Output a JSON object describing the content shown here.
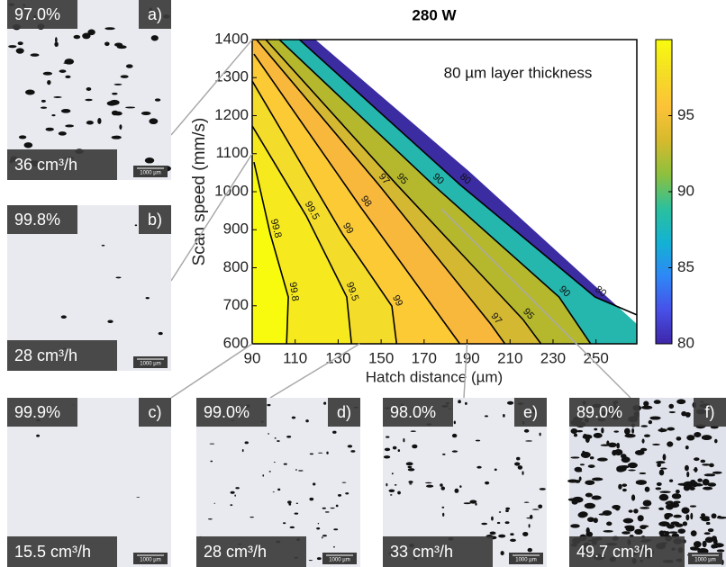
{
  "chart_data": {
    "type": "contour",
    "title": "280 W",
    "annotation": "80 µm layer thickness",
    "x_label": "Hatch distance (µm)",
    "y_label": "Scan speed (mm/s)",
    "xlim": [
      90,
      269
    ],
    "ylim": [
      600,
      1400
    ],
    "xticks": [
      90,
      110,
      130,
      150,
      170,
      190,
      210,
      230,
      250
    ],
    "yticks": [
      600,
      700,
      800,
      900,
      1000,
      1100,
      1200,
      1300,
      1400
    ],
    "clim": [
      80,
      100
    ],
    "cticks": [
      80,
      85,
      90,
      95
    ],
    "colormap": [
      "#3e26a8",
      "#4750e8",
      "#2e87f7",
      "#13b2d3",
      "#2bc09d",
      "#8cc03e",
      "#d6ba2d",
      "#fcc238",
      "#f5dd25",
      "#f9fb0e"
    ],
    "fill_above": "#f9fb0e",
    "contours": [
      {
        "level": 99.8,
        "color": "#f6ea1e",
        "x": [
          90.8,
          98.4,
          106.8,
          106
        ],
        "y": [
          1078,
          889,
          723,
          600
        ]
      },
      {
        "level": 99.5,
        "color": "#f4dc2a",
        "x": [
          90,
          115.2,
          134,
          136.2
        ],
        "y": [
          1173,
          936,
          723,
          600
        ]
      },
      {
        "level": 99,
        "color": "#fbca35",
        "x": [
          90,
          132,
          155,
          157.2
        ],
        "y": [
          1291,
          889,
          699,
          600
        ]
      },
      {
        "level": 98,
        "color": "#f8b83c",
        "x": [
          90.8,
          140.4,
          186.6
        ],
        "y": [
          1362,
          960,
          600
        ]
      },
      {
        "level": 97,
        "color": "#d4b832",
        "x": [
          92,
          148.8,
          201,
          207.6
        ],
        "y": [
          1400,
          1019,
          652,
          600
        ]
      },
      {
        "level": 95,
        "color": "#b5b82c",
        "x": [
          96.3,
          157.2,
          216,
          224.4
        ],
        "y": [
          1400,
          1019,
          664,
          600
        ]
      },
      {
        "level": 90,
        "color": "#25b6ad",
        "x": [
          102.6,
          174,
          232.8,
          247.5
        ],
        "y": [
          1400,
          1019,
          723,
          600
        ]
      },
      {
        "level": 80,
        "color": "#3b2ca2",
        "x": [
          112,
          186.6,
          249.6,
          269
        ],
        "y": [
          1400,
          1019,
          723,
          676
        ]
      }
    ],
    "domain_edge": {
      "color": "#ffffff",
      "x": [
        119.4,
        190.8,
        269
      ],
      "y": [
        1400,
        1054,
        652
      ]
    },
    "samples": [
      {
        "label": "a)",
        "density": "97.0%",
        "rate": "36 cm³/h",
        "scale": "1000 µm",
        "x": 90,
        "y": 1400
      },
      {
        "label": "b)",
        "density": "99.8%",
        "rate": "28 cm³/h",
        "scale": "1000 µm",
        "x": 90,
        "y": 1100
      },
      {
        "label": "c)",
        "density": "99.9%",
        "rate": "15.5 cm³/h",
        "scale": "1000 µm",
        "x": 90,
        "y": 600
      },
      {
        "label": "d)",
        "density": "99.0%",
        "rate": "28 cm³/h",
        "scale": "1000 µm",
        "x": 140,
        "y": 600
      },
      {
        "label": "e)",
        "density": "98.0%",
        "rate": "33 cm³/h",
        "scale": "1000 µm",
        "x": 190,
        "y": 600
      },
      {
        "label": "f)",
        "density": "89.0%",
        "rate": "49.7 cm³/h",
        "scale": "1000 µm",
        "x": 178,
        "y": 955
      }
    ]
  }
}
